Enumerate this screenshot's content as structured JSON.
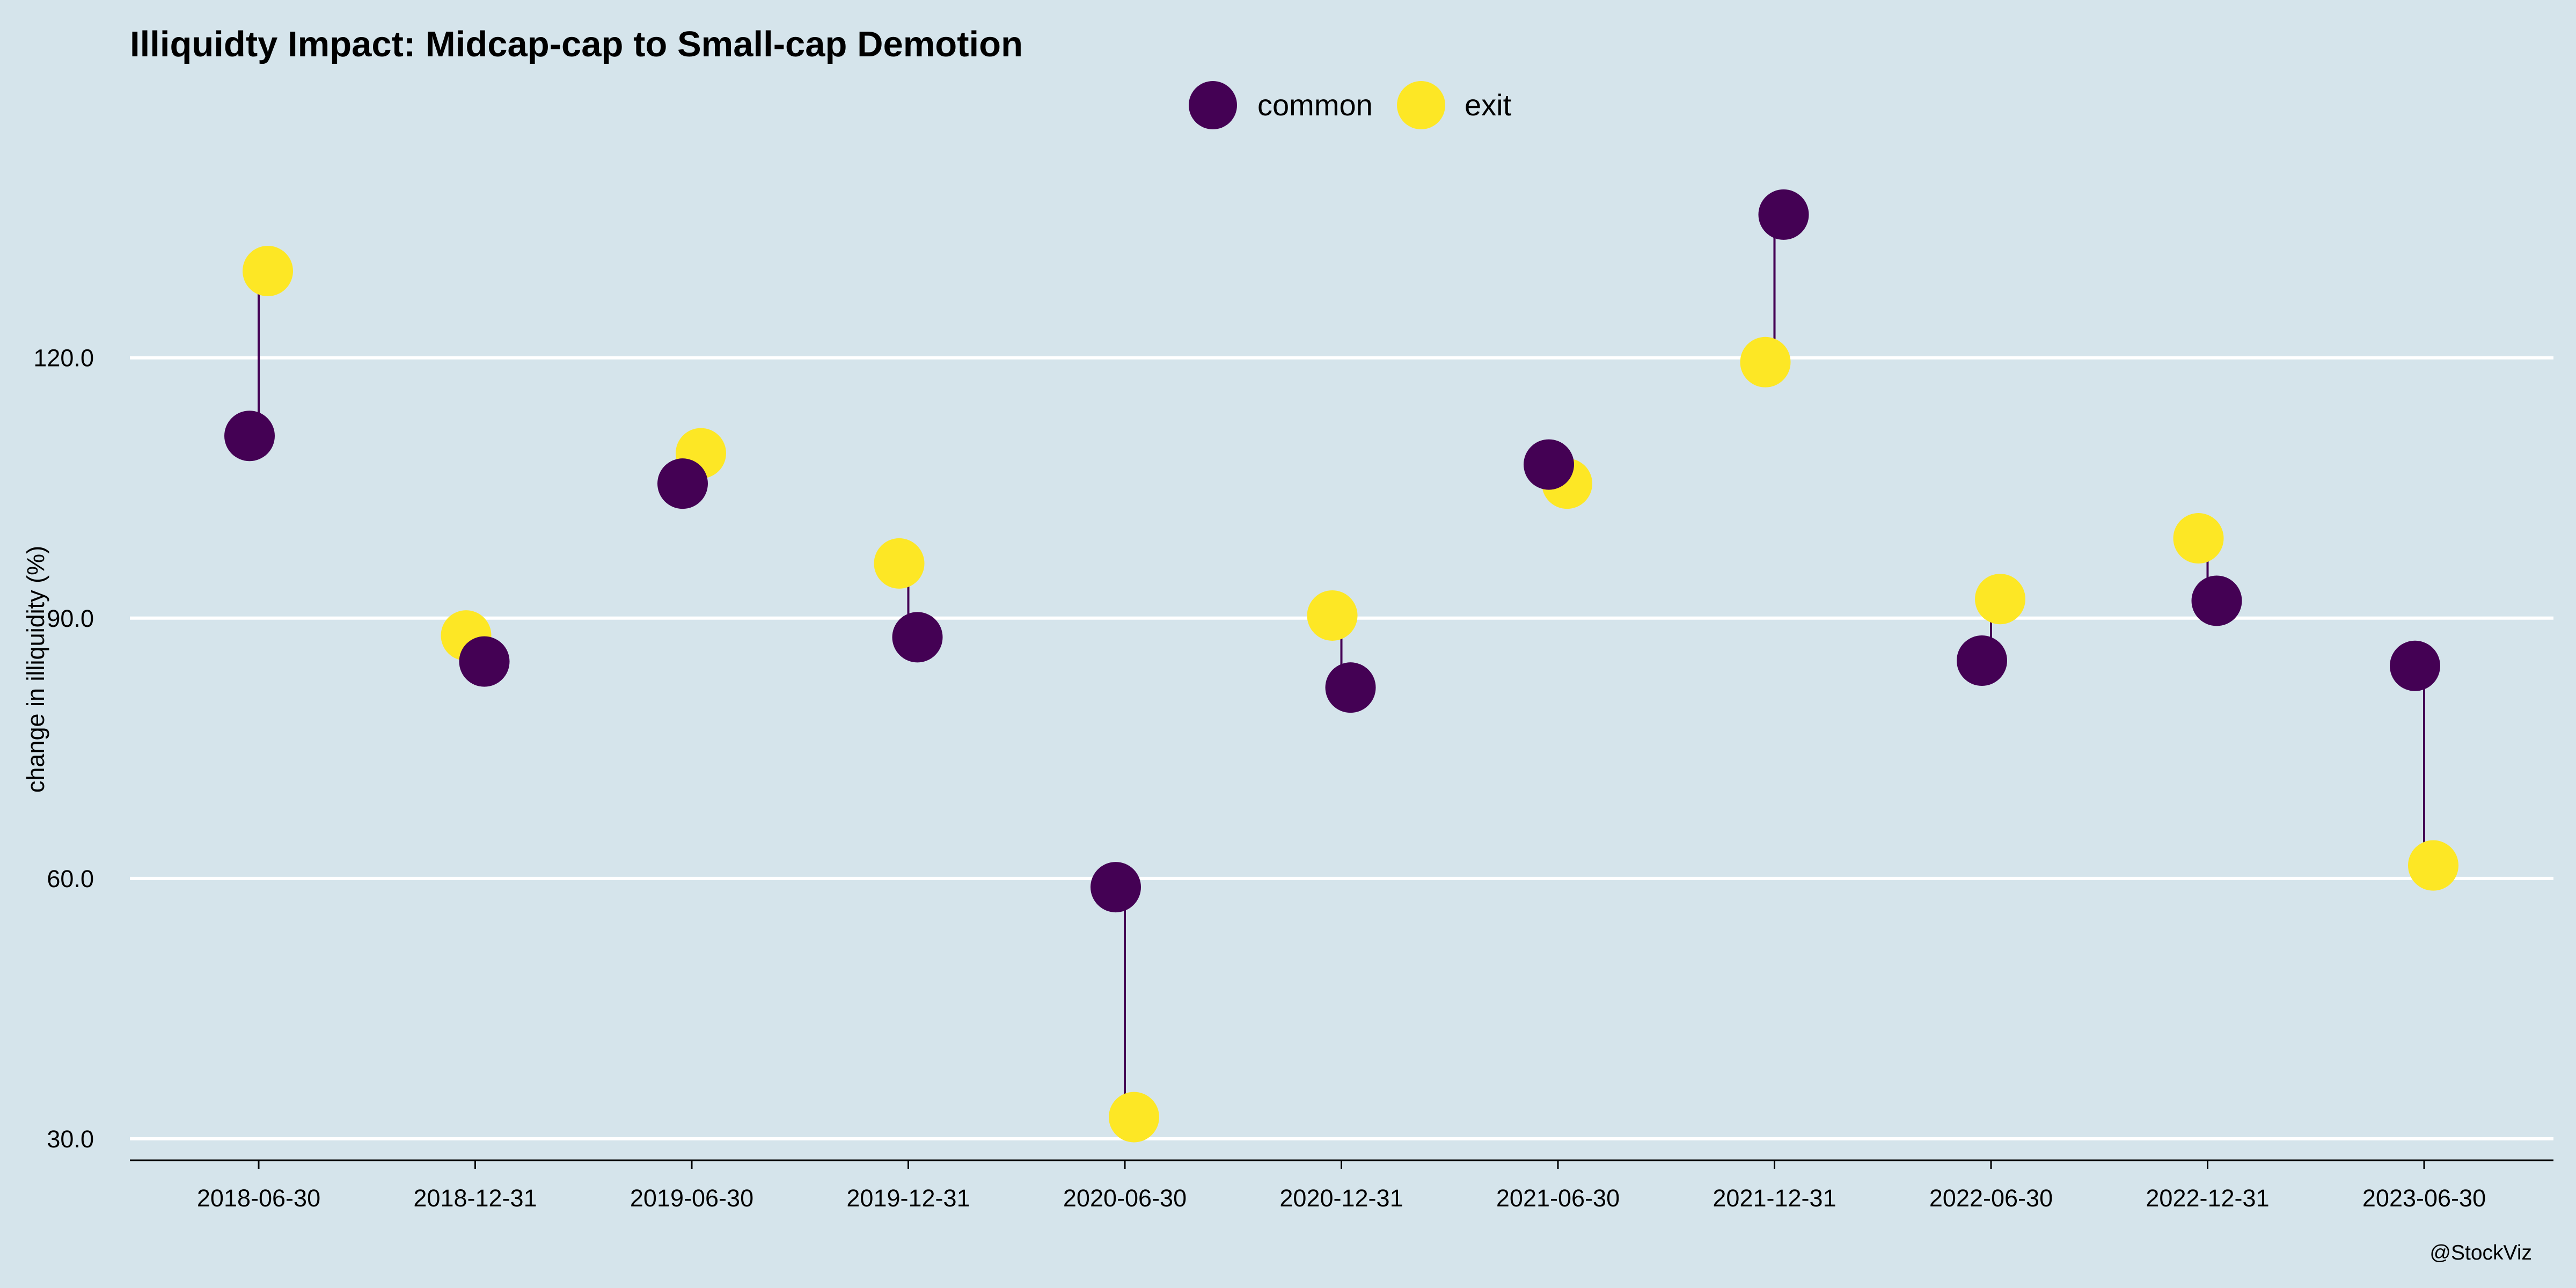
{
  "chart_data": {
    "type": "scatter",
    "title": "Illiquidty Impact: Midcap-cap to Small-cap Demotion",
    "xlabel": "",
    "ylabel": "change in illiquidity (%)",
    "ylim": [
      27.5,
      147.5
    ],
    "yticks": [
      "30.0",
      "60.0",
      "90.0",
      "120.0"
    ],
    "ytick_values": [
      30,
      60,
      90,
      120
    ],
    "categories": [
      "2018-06-30",
      "2018-12-31",
      "2019-06-30",
      "2019-12-31",
      "2020-06-30",
      "2020-12-31",
      "2021-06-30",
      "2021-12-31",
      "2022-06-30",
      "2022-12-31",
      "2023-06-30"
    ],
    "series": [
      {
        "name": "common",
        "color": "#440154",
        "values": [
          111.0,
          85.0,
          105.5,
          87.8,
          59.0,
          82.0,
          107.7,
          136.5,
          85.1,
          92.0,
          84.5
        ]
      },
      {
        "name": "exit",
        "color": "#fde725",
        "values": [
          130.0,
          88.0,
          109.0,
          96.3,
          32.5,
          90.3,
          105.5,
          119.5,
          92.2,
          99.2,
          61.5
        ]
      }
    ],
    "legend_position": "top-center",
    "grid": "horizontal major lines",
    "caption": "@StockViz"
  },
  "colors": {
    "background": "#d5e4eb",
    "gridline": "#ffffff",
    "connector": "#440154"
  }
}
